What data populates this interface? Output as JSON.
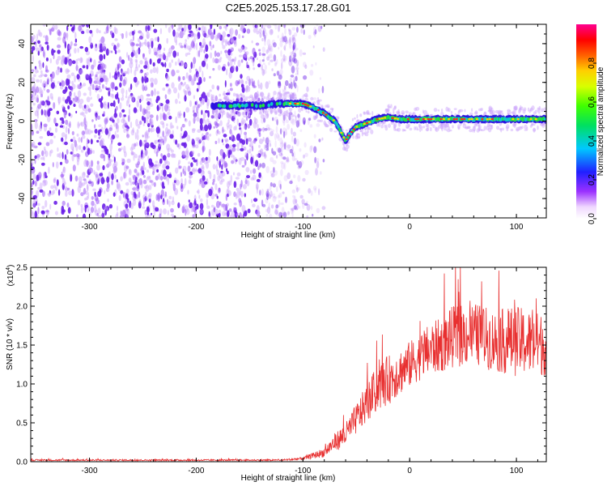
{
  "chart_data": [
    {
      "type": "heatmap",
      "title": "C2E5.2025.153.17.28.G01",
      "xlabel": "Height of straight line (km)",
      "ylabel": "Frequency (Hz)",
      "xlim": [
        -355,
        128
      ],
      "ylim": [
        -50,
        50
      ],
      "x_ticks": [
        -300,
        -200,
        -100,
        0,
        100
      ],
      "x_tick_labels": [
        "-300",
        "-200",
        "-100",
        "0",
        "100"
      ],
      "y_ticks": [
        -40,
        -20,
        0,
        20,
        40
      ],
      "y_tick_labels": [
        "-40",
        "-20",
        "0",
        "20",
        "40"
      ],
      "colorbar": {
        "label": "Normalized spectral amplitude",
        "range": [
          0,
          1
        ],
        "ticks": [
          0,
          0.2,
          0.4,
          0.6,
          0.8
        ],
        "tick_labels": [
          "0.0",
          "0.2",
          "0.4",
          "0.6",
          "0.8"
        ],
        "colormap": "rainbow (violet-blue-cyan-green-yellow-orange-red-magenta)"
      },
      "noise_region": {
        "x_range": [
          -355,
          -105
        ],
        "description": "scattered low-amplitude violet speckle"
      },
      "trace": {
        "height_km": [
          -180,
          -160,
          -140,
          -120,
          -110,
          -100,
          -90,
          -80,
          -70,
          -65,
          -60,
          -55,
          -50,
          -40,
          -30,
          -20,
          -10,
          0,
          20,
          40,
          60,
          80,
          100,
          128
        ],
        "freq_hz": [
          8,
          8,
          8,
          9,
          9,
          9,
          7,
          4,
          0,
          -5,
          -10,
          -6,
          -3,
          -1,
          1,
          2,
          1,
          1,
          1,
          1,
          1,
          1,
          1,
          1
        ]
      },
      "colors": {
        "trace_core": "#ff2a1a",
        "trace_mid": "#22dd22",
        "trace_edge": "#2a10e0",
        "noise": "#7a2cf0"
      }
    },
    {
      "type": "line",
      "xlabel": "Height of straight line (km)",
      "ylabel": "SNR (10 * v/v)",
      "y_multiplier": "(x10",
      "y_multiplier_exp": "4",
      "y_multiplier_close": ")",
      "xlim": [
        -355,
        128
      ],
      "ylim": [
        0,
        2.5
      ],
      "x_ticks": [
        -300,
        -200,
        -100,
        0,
        100
      ],
      "x_tick_labels": [
        "-300",
        "-200",
        "-100",
        "0",
        "100"
      ],
      "y_ticks": [
        0,
        0.5,
        1.0,
        1.5,
        2.0,
        2.5
      ],
      "y_tick_labels": [
        "0.0",
        "0.5",
        "1.0",
        "1.5",
        "2.0",
        "2.5"
      ],
      "series": [
        {
          "name": "SNR",
          "color": "#e83030",
          "x": [
            -355,
            -300,
            -200,
            -120,
            -100,
            -80,
            -70,
            -60,
            -50,
            -40,
            -30,
            -20,
            -10,
            0,
            10,
            20,
            30,
            40,
            60,
            80,
            100,
            128
          ],
          "y": [
            0.02,
            0.02,
            0.02,
            0.02,
            0.04,
            0.12,
            0.25,
            0.35,
            0.55,
            0.75,
            0.95,
            1.05,
            1.15,
            1.25,
            1.35,
            1.45,
            1.5,
            1.6,
            1.65,
            1.55,
            1.55,
            1.5
          ],
          "noise_amplitude": [
            0.01,
            0.01,
            0.01,
            0.01,
            0.02,
            0.06,
            0.12,
            0.15,
            0.2,
            0.25,
            0.3,
            0.32,
            0.3,
            0.3,
            0.3,
            0.35,
            0.35,
            0.4,
            0.4,
            0.4,
            0.45,
            0.4
          ]
        }
      ]
    }
  ]
}
